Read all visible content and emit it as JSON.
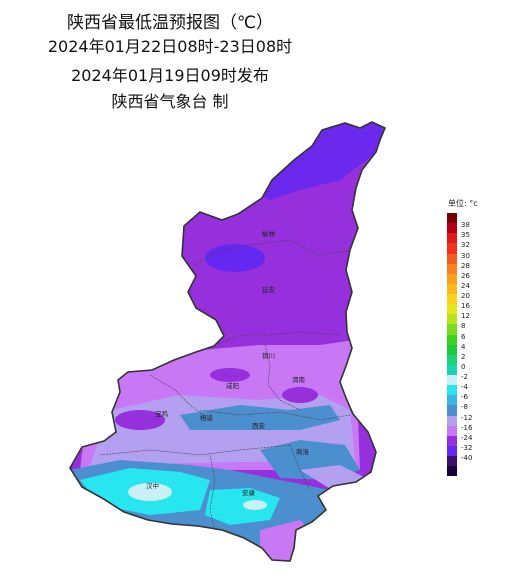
{
  "title": {
    "line1": "陕西省最低温预报图（℃）",
    "line2": "2024年01月22日08时-23日08时",
    "line3": "2024年01月19日09时发布",
    "line4": "陕西省气象台 制"
  },
  "legend": {
    "unit_label": "单位: °c",
    "entries": [
      {
        "label": "",
        "color": "#7a0008"
      },
      {
        "label": "38",
        "color": "#b40014"
      },
      {
        "label": "35",
        "color": "#e01a1a"
      },
      {
        "label": "32",
        "color": "#f0321e"
      },
      {
        "label": "30",
        "color": "#f55a1e"
      },
      {
        "label": "28",
        "color": "#f7821e"
      },
      {
        "label": "26",
        "color": "#f9a01e"
      },
      {
        "label": "24",
        "color": "#fbb91e"
      },
      {
        "label": "20",
        "color": "#fbd21e"
      },
      {
        "label": "16",
        "color": "#e6e61e"
      },
      {
        "label": "12",
        "color": "#b4e61e"
      },
      {
        "label": "8",
        "color": "#78dc1e"
      },
      {
        "label": "6",
        "color": "#3cd21e"
      },
      {
        "label": "4",
        "color": "#1ec83c"
      },
      {
        "label": "2",
        "color": "#1ed278"
      },
      {
        "label": "0",
        "color": "#1ed2b4"
      },
      {
        "label": "-2",
        "color": "#c8f0f5"
      },
      {
        "label": "-4",
        "color": "#28e6f0"
      },
      {
        "label": "-6",
        "color": "#3cb4e6"
      },
      {
        "label": "-8",
        "color": "#4b8fcf"
      },
      {
        "label": "-12",
        "color": "#b4a0f0"
      },
      {
        "label": "-16",
        "color": "#c878f5"
      },
      {
        "label": "-24",
        "color": "#9630dc"
      },
      {
        "label": "-32",
        "color": "#6428f0"
      },
      {
        "label": "-40",
        "color": "#3c0f6e"
      },
      {
        "label": "",
        "color": "#14003c"
      }
    ]
  },
  "cities": [
    "榆林",
    "延安",
    "铜川",
    "渭南",
    "咸阳",
    "宝鸡",
    "杨凌",
    "西安",
    "商洛",
    "汉中",
    "安康"
  ]
}
